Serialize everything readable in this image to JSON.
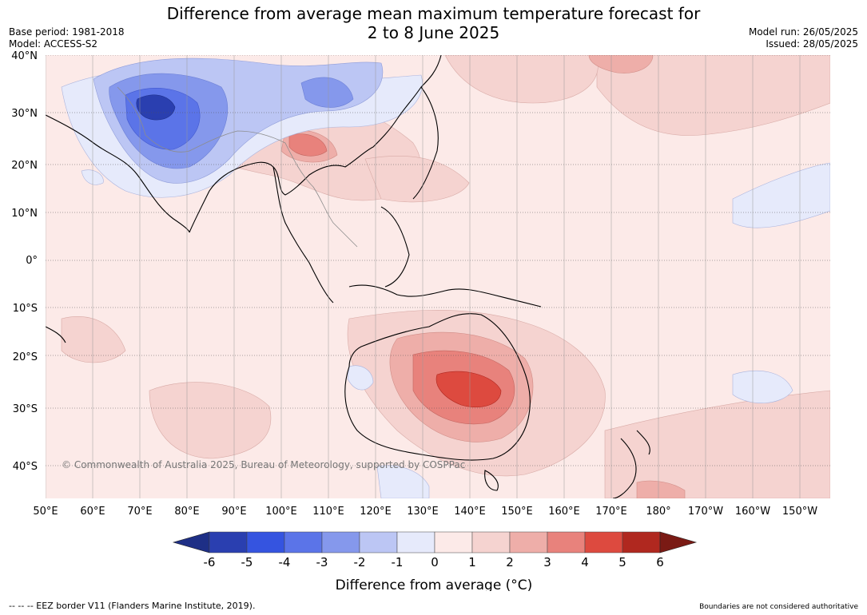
{
  "header": {
    "title_line1": "Difference from average mean maximum temperature forecast for",
    "title_line2": "2 to 8 June 2025",
    "base_period": "Base period: 1981-2018",
    "model": "Model: ACCESS-S2",
    "model_run": "Model run: 26/05/2025",
    "issued": "Issued: 28/05/2025"
  },
  "map": {
    "lat_labels": [
      "40°N",
      "30°N",
      "20°N",
      "10°N",
      "0°",
      "10°S",
      "20°S",
      "30°S",
      "40°S"
    ],
    "lon_labels": [
      "50°E",
      "60°E",
      "70°E",
      "80°E",
      "90°E",
      "100°E",
      "110°E",
      "120°E",
      "130°E",
      "140°E",
      "150°E",
      "160°E",
      "170°E",
      "180°",
      "170°W",
      "160°W",
      "150°W"
    ],
    "copyright": "© Commonwealth of Australia 2025, Bureau of Meteorology, supported by COSPPac"
  },
  "colorbar": {
    "label": "Difference from average (°C)",
    "ticks": [
      "-6",
      "-5",
      "-4",
      "-3",
      "-2",
      "-1",
      "0",
      "1",
      "2",
      "3",
      "4",
      "5",
      "6"
    ],
    "colors": [
      "#1e2f86",
      "#2a3fb0",
      "#3554e0",
      "#5b74e8",
      "#8598ec",
      "#bcc6f4",
      "#e6eafb",
      "#fceae8",
      "#f5d3d0",
      "#eeaea9",
      "#e8827c",
      "#dd4a3f",
      "#b0281f",
      "#7a1a14"
    ]
  },
  "footer": {
    "eez": "--  --  -- EEZ border V11 (Flanders Marine Institute, 2019).",
    "disclaimer": "Boundaries are not considered authoritative"
  }
}
